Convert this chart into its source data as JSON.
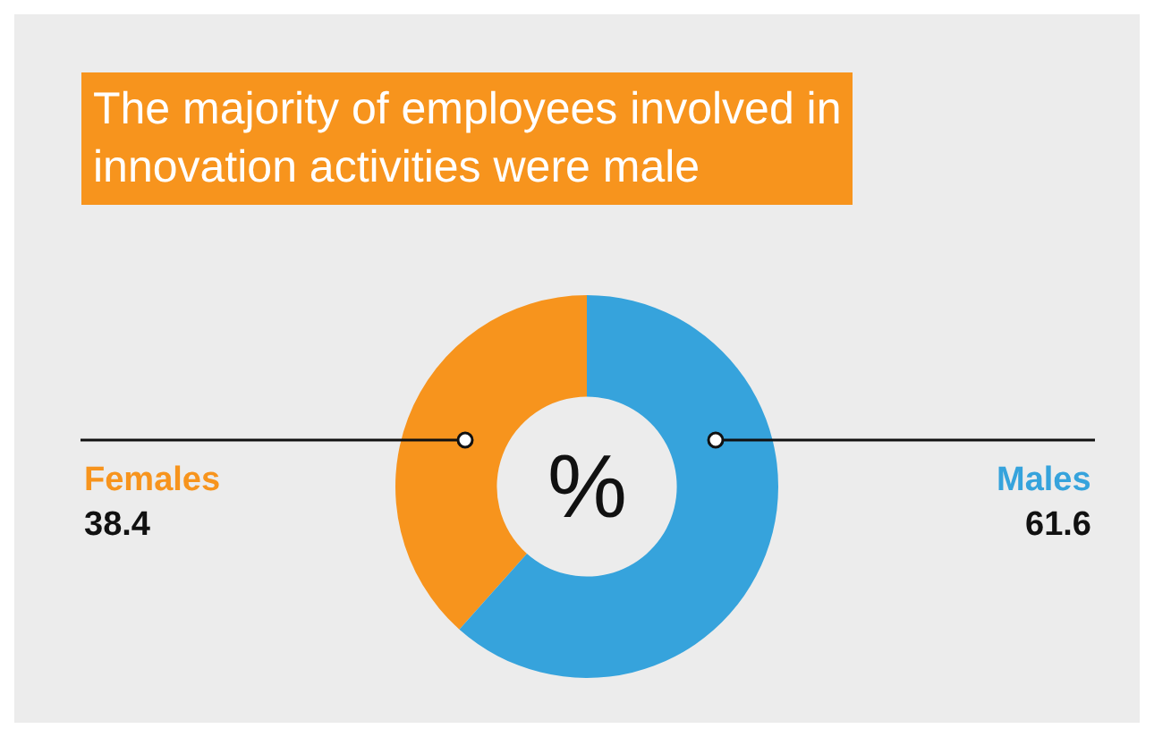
{
  "chart_data": {
    "type": "donut",
    "title": "The majority of employees involved in\ninnovation activities were male",
    "categories": [
      "Females",
      "Males"
    ],
    "values": [
      38.4,
      61.6
    ],
    "colors": [
      "#f7941d",
      "#36a3dc"
    ],
    "data_labels": true,
    "legend": false,
    "annotations": [
      "%"
    ]
  }
}
